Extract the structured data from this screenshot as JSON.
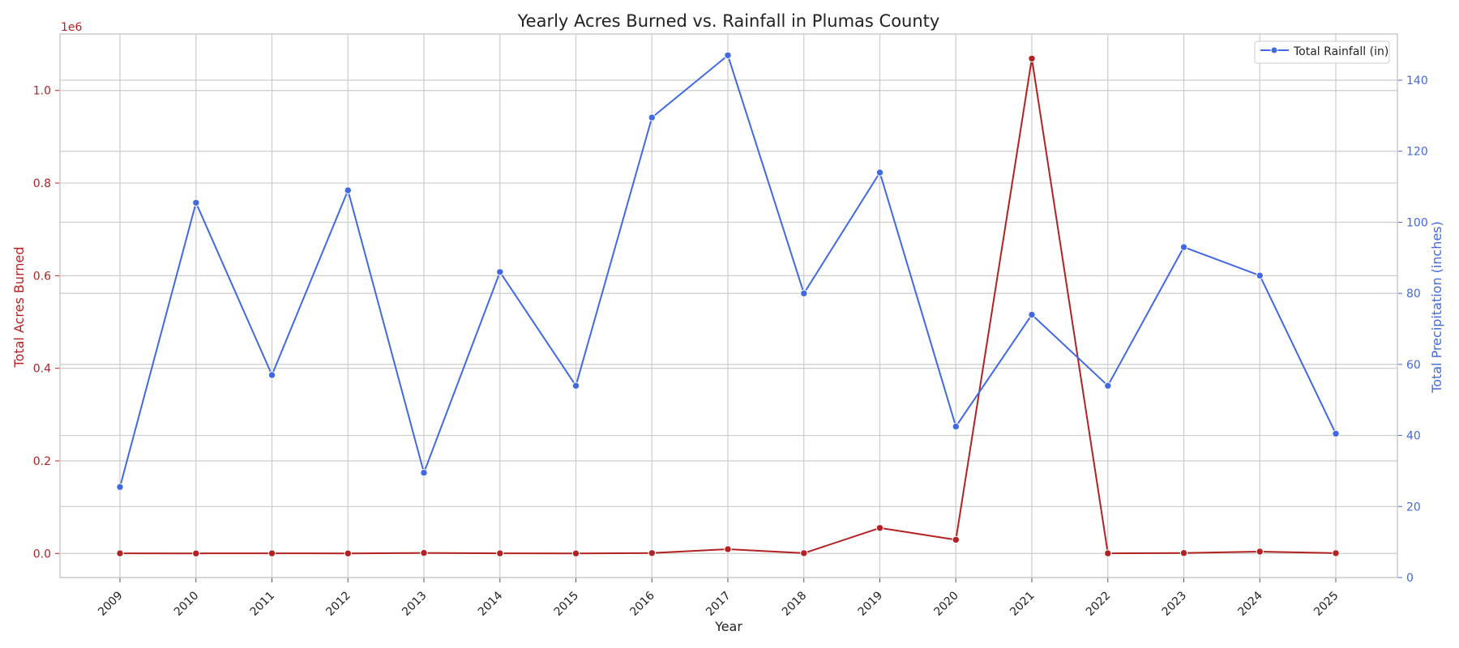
{
  "chart_data": {
    "type": "line",
    "title": "Yearly Acres Burned vs. Rainfall in Plumas County",
    "xlabel": "Year",
    "ylabel_left": "Total Acres Burned",
    "ylabel_right": "Total Precipitation (inches)",
    "left_axis_offset_label": "1e6",
    "categories": [
      "2009",
      "2010",
      "2011",
      "2012",
      "2013",
      "2014",
      "2015",
      "2016",
      "2017",
      "2018",
      "2019",
      "2020",
      "2021",
      "2022",
      "2023",
      "2024",
      "2025"
    ],
    "ylim_left": [
      -52000,
      1122000
    ],
    "ylim_right": [
      0,
      153
    ],
    "yticks_left": [
      0,
      200000,
      400000,
      600000,
      800000,
      1000000
    ],
    "yticks_left_labels": [
      "0.0",
      "0.2",
      "0.4",
      "0.6",
      "0.8",
      "1.0"
    ],
    "yticks_right": [
      0,
      20,
      40,
      60,
      80,
      100,
      120,
      140
    ],
    "yticks_right_labels": [
      "0",
      "20",
      "40",
      "60",
      "80",
      "100",
      "120",
      "140"
    ],
    "grid": true,
    "legend_position": "top-right",
    "series": [
      {
        "axis": "left",
        "color": "#b22222",
        "marker": "circle",
        "values": [
          300,
          200,
          300,
          100,
          1200,
          300,
          200,
          800,
          9200,
          700,
          55000,
          29500,
          1069000,
          300,
          1000,
          4000,
          700
        ]
      },
      {
        "name": "Total Rainfall (in)",
        "axis": "right",
        "color": "#4169e1",
        "marker": "circle",
        "values": [
          25.5,
          105.5,
          57,
          109,
          29.5,
          86,
          54,
          129.5,
          147,
          80,
          114,
          42.5,
          74,
          54,
          93,
          85,
          40.5
        ]
      }
    ]
  },
  "colors": {
    "left_axis": "#b22222",
    "right_axis": "#4169e1",
    "grid": "#cccccc",
    "spine": "#cccccc",
    "text": "#222222"
  }
}
